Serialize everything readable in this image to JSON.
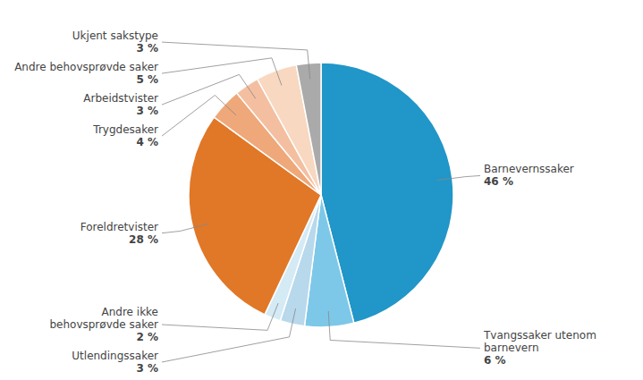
{
  "chart_data": {
    "type": "pie",
    "categories": [
      "Barnevernssaker",
      "Tvangssaker utenom\nbarnevern",
      "Utlendingssaker",
      "Andre ikke\nbehovsprøvde saker",
      "Foreldretvister",
      "Trygdesaker",
      "Arbeidstvister",
      "Andre behovsprøvde saker",
      "Ukjent sakstype"
    ],
    "values": [
      46,
      6,
      3,
      2,
      28,
      4,
      3,
      5,
      3
    ],
    "value_labels": [
      "46 %",
      "6 %",
      "3 %",
      "2 %",
      "28 %",
      "4 %",
      "3 %",
      "5 %",
      "3 %"
    ],
    "colors": [
      "#2196C8",
      "#7DC8E8",
      "#B8D8EC",
      "#D4EAF5",
      "#E07828",
      "#EFA87A",
      "#F4BFA0",
      "#F8D8C0",
      "#AAAAAA"
    ]
  }
}
